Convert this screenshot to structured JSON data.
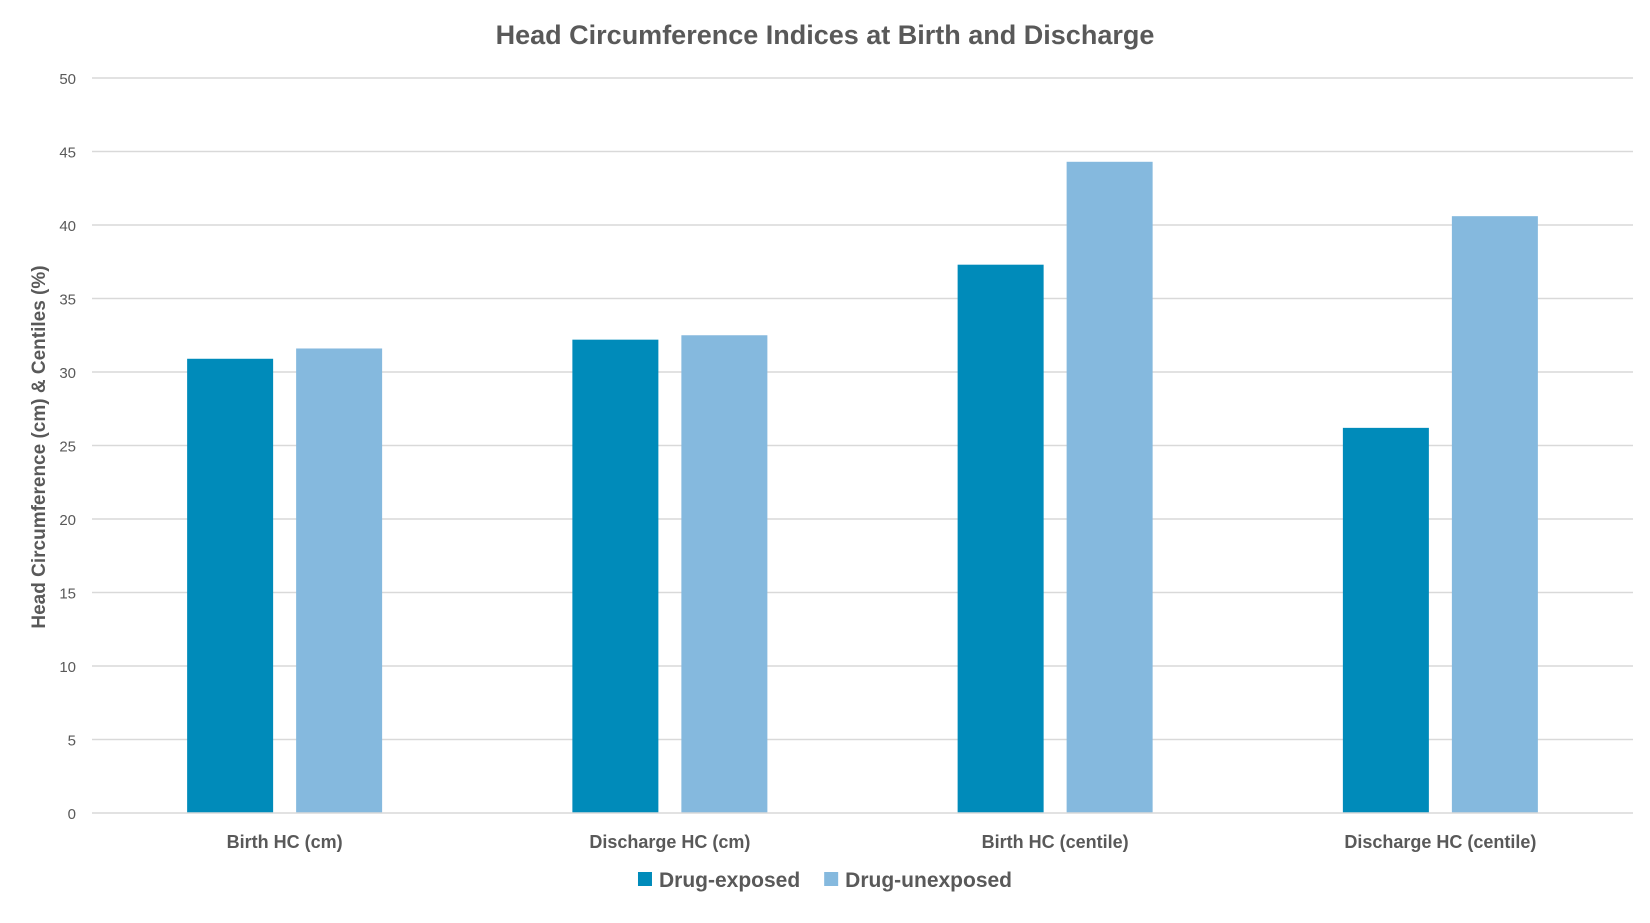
{
  "chart_data": {
    "type": "bar",
    "title": "Head Circumference Indices at Birth and Discharge",
    "xlabel": "",
    "ylabel": "Head Circumference (cm) & Centiles (%)",
    "ylim": [
      0,
      50
    ],
    "yticks": [
      "0",
      "5",
      "10",
      "15",
      "20",
      "25",
      "30",
      "35",
      "40",
      "45",
      "50"
    ],
    "categories": [
      "Birth HC (cm)",
      "Discharge HC (cm)",
      "Birth HC (centile)",
      "Discharge HC (centile)"
    ],
    "series": [
      {
        "name": "Drug-exposed",
        "color": "#008BBA",
        "values": [
          30.9,
          32.2,
          37.3,
          26.2
        ]
      },
      {
        "name": "Drug-unexposed",
        "color": "#85B9DE",
        "values": [
          31.6,
          32.5,
          44.3,
          40.6
        ]
      }
    ],
    "grid": true,
    "legend_position": "bottom"
  }
}
